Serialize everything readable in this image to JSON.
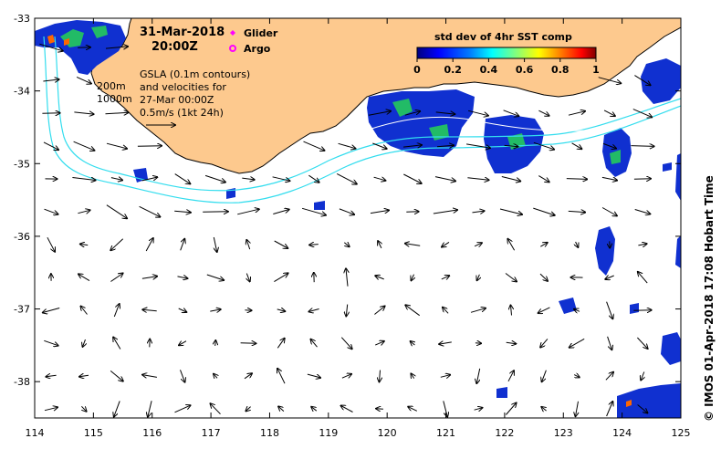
{
  "header": {
    "date": "31-Mar-2018",
    "time": "20:00Z"
  },
  "legend": {
    "glider_label": "Glider",
    "argo_label": "Argo",
    "glider_color": "#ff00ff",
    "argo_color": "#ff00ff"
  },
  "colorbar": {
    "title": "std dev of 4hr SST comp",
    "ticks": [
      "0",
      "0.2",
      "0.4",
      "0.6",
      "0.8",
      "1"
    ],
    "colors": [
      "#00007f",
      "#0000ff",
      "#0080ff",
      "#00ffff",
      "#80ff80",
      "#ffff00",
      "#ff8000",
      "#ff0000",
      "#7f0000"
    ]
  },
  "annotation": {
    "line1": "GSLA (0.1m contours)",
    "line2": "and velocities for",
    "line3": "27-Mar 00:00Z",
    "line4": "0.5m/s (1kt 24h)"
  },
  "isobaths": {
    "label_200": "200m",
    "label_1000": "1000m",
    "color": "#33ddee"
  },
  "credit": "©  IMOS 01-Apr-2018 17:08 Hobart Time",
  "colors": {
    "land": "#fdc98e",
    "coast": "#000000",
    "sst_blue": "#1030d0"
  },
  "chart_data": {
    "type": "map",
    "x_ticks": [
      "114",
      "115",
      "116",
      "117",
      "118",
      "119",
      "120",
      "121",
      "122",
      "123",
      "124",
      "125"
    ],
    "y_ticks": [
      "-33",
      "-34",
      "-35",
      "-36",
      "-37",
      "-38"
    ],
    "xlim": [
      114,
      125
    ],
    "ylim": [
      -38.5,
      -33
    ],
    "vector_scale_ms": 0.5
  }
}
